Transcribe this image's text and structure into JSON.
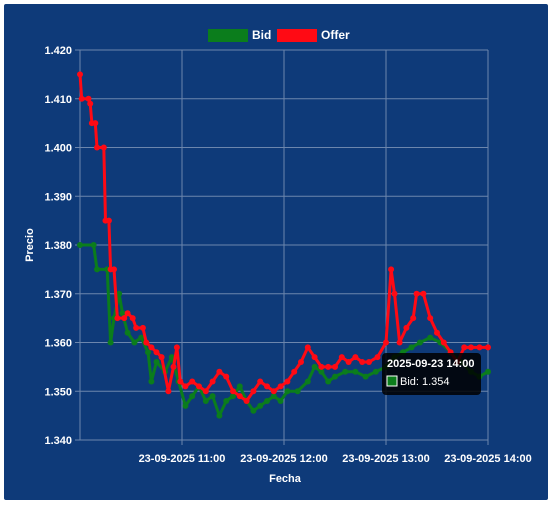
{
  "colors": {
    "background": "#0e3a79",
    "grid": "#6c86ad",
    "bid": "#0b7d1c",
    "offer": "#ff0a14",
    "text": "#ffffff",
    "tooltip_bg": "#000000"
  },
  "chart_data": {
    "type": "line",
    "xlabel": "Fecha",
    "ylabel": "Precio",
    "ylim": [
      1.34,
      1.42
    ],
    "y_ticks": [
      "1.420",
      "1.410",
      "1.400",
      "1.390",
      "1.380",
      "1.370",
      "1.360",
      "1.350",
      "1.340"
    ],
    "x_range": [
      "2025-09-23 10:00",
      "2025-09-23 14:00"
    ],
    "x_ticks": [
      {
        "t": "2025-09-23 11:00",
        "label": "23-09-2025 11:00"
      },
      {
        "t": "2025-09-23 12:00",
        "label": "23-09-2025 12:00"
      },
      {
        "t": "2025-09-23 13:00",
        "label": "23-09-2025 13:00"
      },
      {
        "t": "2025-09-23 14:00",
        "label": "23-09-2025 14:00"
      }
    ],
    "grid": true,
    "legend_position": "top",
    "series": [
      {
        "name": "Bid",
        "color_key": "bid",
        "points": [
          [
            "10:00",
            1.38
          ],
          [
            "10:08",
            1.38
          ],
          [
            "10:10",
            1.375
          ],
          [
            "10:16",
            1.375
          ],
          [
            "10:18",
            1.36
          ],
          [
            "10:20",
            1.365
          ],
          [
            "10:23",
            1.37
          ],
          [
            "10:25",
            1.366
          ],
          [
            "10:28",
            1.362
          ],
          [
            "10:32",
            1.36
          ],
          [
            "10:36",
            1.361
          ],
          [
            "10:40",
            1.358
          ],
          [
            "10:42",
            1.352
          ],
          [
            "10:45",
            1.356
          ],
          [
            "10:50",
            1.354
          ],
          [
            "10:54",
            1.357
          ],
          [
            "10:58",
            1.352
          ],
          [
            "11:02",
            1.347
          ],
          [
            "11:06",
            1.349
          ],
          [
            "11:10",
            1.351
          ],
          [
            "11:14",
            1.348
          ],
          [
            "11:18",
            1.349
          ],
          [
            "11:22",
            1.345
          ],
          [
            "11:26",
            1.348
          ],
          [
            "11:30",
            1.349
          ],
          [
            "11:34",
            1.351
          ],
          [
            "11:38",
            1.348
          ],
          [
            "11:42",
            1.346
          ],
          [
            "11:46",
            1.347
          ],
          [
            "11:50",
            1.348
          ],
          [
            "11:54",
            1.349
          ],
          [
            "11:58",
            1.348
          ],
          [
            "12:02",
            1.35
          ],
          [
            "12:08",
            1.35
          ],
          [
            "12:14",
            1.352
          ],
          [
            "12:18",
            1.355
          ],
          [
            "12:22",
            1.354
          ],
          [
            "12:26",
            1.352
          ],
          [
            "12:30",
            1.353
          ],
          [
            "12:36",
            1.354
          ],
          [
            "12:42",
            1.354
          ],
          [
            "12:48",
            1.353
          ],
          [
            "12:54",
            1.354
          ],
          [
            "13:00",
            1.355
          ],
          [
            "13:05",
            1.357
          ],
          [
            "13:10",
            1.358
          ],
          [
            "13:15",
            1.359
          ],
          [
            "13:20",
            1.36
          ],
          [
            "13:26",
            1.361
          ],
          [
            "13:32",
            1.36
          ],
          [
            "13:38",
            1.358
          ],
          [
            "13:44",
            1.356
          ],
          [
            "13:50",
            1.354
          ],
          [
            "13:55",
            1.353
          ],
          [
            "14:00",
            1.354
          ]
        ],
        "last_value_label": "Bid: 1.354"
      },
      {
        "name": "Offer",
        "color_key": "offer",
        "points": [
          [
            "10:00",
            1.415
          ],
          [
            "10:01",
            1.41
          ],
          [
            "10:05",
            1.41
          ],
          [
            "10:06",
            1.409
          ],
          [
            "10:07",
            1.405
          ],
          [
            "10:09",
            1.405
          ],
          [
            "10:10",
            1.4
          ],
          [
            "10:14",
            1.4
          ],
          [
            "10:15",
            1.385
          ],
          [
            "10:17",
            1.385
          ],
          [
            "10:18",
            1.375
          ],
          [
            "10:20",
            1.375
          ],
          [
            "10:22",
            1.365
          ],
          [
            "10:26",
            1.365
          ],
          [
            "10:28",
            1.366
          ],
          [
            "10:31",
            1.365
          ],
          [
            "10:33",
            1.363
          ],
          [
            "10:37",
            1.363
          ],
          [
            "10:39",
            1.36
          ],
          [
            "10:42",
            1.359
          ],
          [
            "10:45",
            1.358
          ],
          [
            "10:48",
            1.357
          ],
          [
            "10:52",
            1.35
          ],
          [
            "10:55",
            1.355
          ],
          [
            "10:57",
            1.359
          ],
          [
            "10:59",
            1.352
          ],
          [
            "11:02",
            1.351
          ],
          [
            "11:06",
            1.352
          ],
          [
            "11:10",
            1.351
          ],
          [
            "11:14",
            1.35
          ],
          [
            "11:18",
            1.352
          ],
          [
            "11:22",
            1.354
          ],
          [
            "11:26",
            1.353
          ],
          [
            "11:30",
            1.35
          ],
          [
            "11:34",
            1.349
          ],
          [
            "11:38",
            1.348
          ],
          [
            "11:42",
            1.35
          ],
          [
            "11:46",
            1.352
          ],
          [
            "11:50",
            1.351
          ],
          [
            "11:54",
            1.35
          ],
          [
            "11:58",
            1.351
          ],
          [
            "12:02",
            1.352
          ],
          [
            "12:06",
            1.354
          ],
          [
            "12:10",
            1.356
          ],
          [
            "12:14",
            1.359
          ],
          [
            "12:18",
            1.357
          ],
          [
            "12:22",
            1.355
          ],
          [
            "12:26",
            1.355
          ],
          [
            "12:30",
            1.355
          ],
          [
            "12:34",
            1.357
          ],
          [
            "12:38",
            1.356
          ],
          [
            "12:42",
            1.357
          ],
          [
            "12:46",
            1.356
          ],
          [
            "12:50",
            1.356
          ],
          [
            "12:55",
            1.357
          ],
          [
            "13:00",
            1.36
          ],
          [
            "13:03",
            1.375
          ],
          [
            "13:05",
            1.37
          ],
          [
            "13:08",
            1.36
          ],
          [
            "13:12",
            1.363
          ],
          [
            "13:16",
            1.365
          ],
          [
            "13:18",
            1.37
          ],
          [
            "13:22",
            1.37
          ],
          [
            "13:26",
            1.365
          ],
          [
            "13:30",
            1.362
          ],
          [
            "13:34",
            1.36
          ],
          [
            "13:38",
            1.358
          ],
          [
            "13:42",
            1.356
          ],
          [
            "13:46",
            1.359
          ],
          [
            "13:50",
            1.359
          ],
          [
            "13:55",
            1.359
          ],
          [
            "14:00",
            1.359
          ]
        ]
      }
    ],
    "tooltip": {
      "title": "2025-09-23 14:00",
      "label": "Bid: 1.354"
    }
  }
}
